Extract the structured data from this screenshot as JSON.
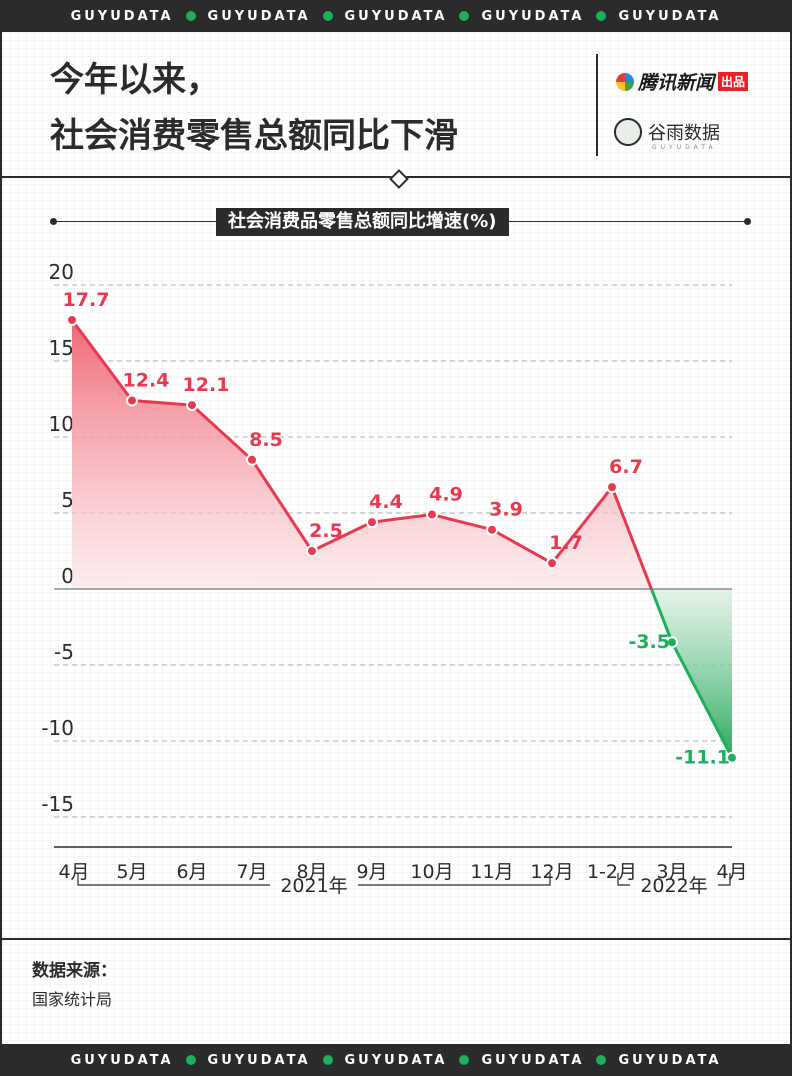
{
  "banner": {
    "text": "GUYUDATA"
  },
  "header": {
    "title_line1": "今年以来，",
    "title_line2": "社会消费零售总额同比下滑",
    "brand_tencent": "腾讯新闻",
    "brand_tencent_badge": "出品",
    "brand_guyu": "谷雨数据",
    "brand_guyu_sub": "GUYUDATA"
  },
  "colors": {
    "positive": "#e83a4f",
    "negative": "#1fae5c",
    "dark": "#2b2b2b"
  },
  "chart_data": {
    "type": "area",
    "subtitle": "社会消费品零售总额同比增速(%)",
    "categories": [
      "4月",
      "5月",
      "6月",
      "7月",
      "8月",
      "9月",
      "10月",
      "11月",
      "12月",
      "1-2月",
      "3月",
      "4月"
    ],
    "values": [
      17.7,
      12.4,
      12.1,
      8.5,
      2.5,
      4.4,
      4.9,
      3.9,
      1.7,
      6.7,
      -3.5,
      -11.1
    ],
    "value_labels": [
      "17.7",
      "12.4",
      "12.1",
      "8.5",
      "2.5",
      "4.4",
      "4.9",
      "3.9",
      "1.7",
      "6.7",
      "-3.5",
      "-11.1"
    ],
    "ylim": [
      -15,
      20
    ],
    "yticks": [
      20,
      15,
      10,
      5,
      0,
      -5,
      -10,
      -15
    ],
    "grid": "horizontal-dashed",
    "year_groups": [
      {
        "label": "2021年",
        "from": 0,
        "to": 8
      },
      {
        "label": "2022年",
        "from": 9,
        "to": 11
      }
    ]
  },
  "source": {
    "label": "数据来源：",
    "value": "国家统计局"
  }
}
